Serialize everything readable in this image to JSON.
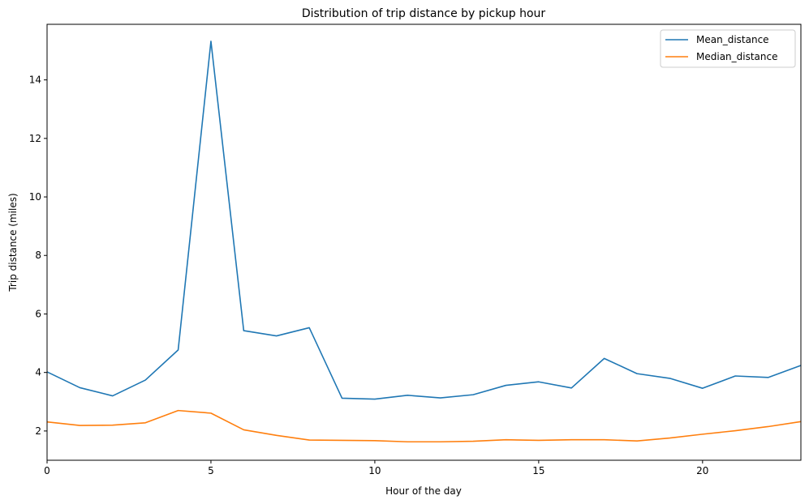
{
  "chart_data": {
    "type": "line",
    "title": "Distribution of trip distance by pickup hour",
    "xlabel": "Hour of the day",
    "ylabel": "Trip distance (miles)",
    "xlim": [
      0,
      23
    ],
    "ylim": [
      1.0,
      15.9
    ],
    "xticks": [
      0,
      5,
      10,
      15,
      20
    ],
    "yticks": [
      2,
      4,
      6,
      8,
      10,
      12,
      14
    ],
    "grid": false,
    "legend_position": "top-right",
    "x": [
      0,
      1,
      2,
      3,
      4,
      5,
      6,
      7,
      8,
      9,
      10,
      11,
      12,
      13,
      14,
      15,
      16,
      17,
      18,
      19,
      20,
      21,
      22,
      23
    ],
    "series": [
      {
        "name": "Mean_distance",
        "color": "#1f77b4",
        "values": [
          4.02,
          3.48,
          3.2,
          3.74,
          4.77,
          15.32,
          5.43,
          5.25,
          5.53,
          3.12,
          3.09,
          3.22,
          3.13,
          3.24,
          3.56,
          3.68,
          3.47,
          4.48,
          3.96,
          3.8,
          3.46,
          3.88,
          3.83,
          4.24
        ]
      },
      {
        "name": "Median_distance",
        "color": "#ff7f0e",
        "values": [
          2.31,
          2.19,
          2.2,
          2.28,
          2.7,
          2.61,
          2.04,
          1.85,
          1.69,
          1.68,
          1.67,
          1.63,
          1.63,
          1.65,
          1.7,
          1.68,
          1.7,
          1.7,
          1.66,
          1.76,
          1.89,
          2.01,
          2.15,
          2.32
        ]
      }
    ]
  }
}
